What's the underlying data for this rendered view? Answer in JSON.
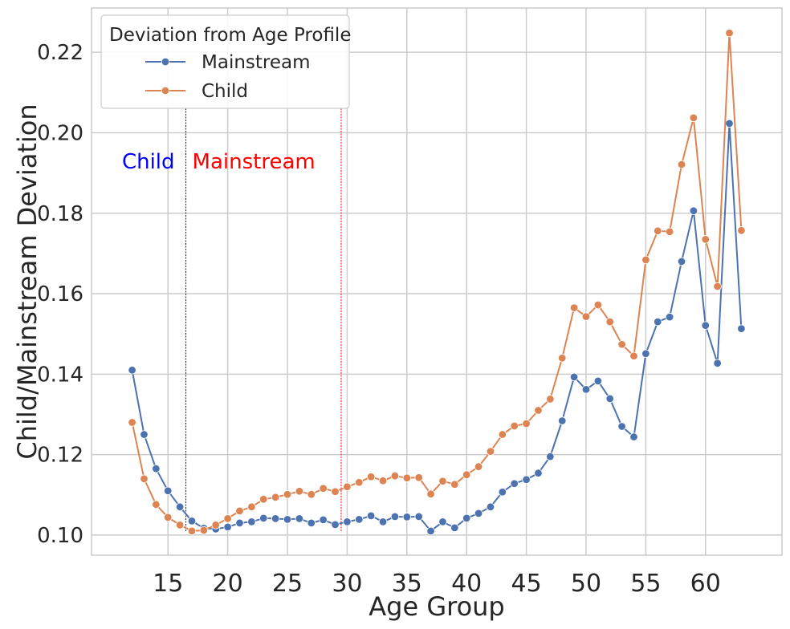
{
  "chart_data": {
    "type": "line",
    "xlabel": "Age Group",
    "ylabel": "Child/Mainstream Deviation",
    "xlim": [
      8.6,
      66.4
    ],
    "ylim": [
      0.095,
      0.231
    ],
    "xticks": [
      15,
      20,
      25,
      30,
      35,
      40,
      45,
      50,
      55,
      60
    ],
    "yticks": [
      0.1,
      0.12,
      0.14,
      0.16,
      0.18,
      0.2,
      0.22
    ],
    "grid": true,
    "legend": {
      "title": "Deviation from Age Profile",
      "placement": "upper-left"
    },
    "x": [
      12,
      13,
      14,
      15,
      16,
      17,
      18,
      19,
      20,
      21,
      22,
      23,
      24,
      25,
      26,
      27,
      28,
      29,
      30,
      31,
      32,
      33,
      34,
      35,
      36,
      37,
      38,
      39,
      40,
      41,
      42,
      43,
      44,
      45,
      46,
      47,
      48,
      49,
      50,
      51,
      52,
      53,
      54,
      55,
      56,
      57,
      58,
      59,
      60,
      61,
      62,
      63
    ],
    "series": [
      {
        "name": "Mainstream",
        "color": "#4c72b0",
        "values": [
          0.141,
          0.125,
          0.1165,
          0.111,
          0.107,
          0.1035,
          0.1017,
          0.1015,
          0.102,
          0.103,
          0.1033,
          0.1042,
          0.1041,
          0.1039,
          0.1041,
          0.103,
          0.1038,
          0.1026,
          0.1033,
          0.1039,
          0.1048,
          0.1033,
          0.1046,
          0.1045,
          0.1046,
          0.101,
          0.1033,
          0.1018,
          0.1042,
          0.1054,
          0.107,
          0.1107,
          0.1128,
          0.1138,
          0.1154,
          0.1195,
          0.1284,
          0.1393,
          0.1362,
          0.1383,
          0.1339,
          0.127,
          0.1244,
          0.1451,
          0.153,
          0.1542,
          0.168,
          0.1806,
          0.1521,
          0.1427,
          0.2023,
          0.1513
        ]
      },
      {
        "name": "Child",
        "color": "#dd8452",
        "values": [
          0.128,
          0.114,
          0.1076,
          0.1044,
          0.1025,
          0.101,
          0.1012,
          0.1025,
          0.1041,
          0.106,
          0.107,
          0.1089,
          0.1094,
          0.1101,
          0.1109,
          0.1101,
          0.1116,
          0.1108,
          0.112,
          0.1131,
          0.1145,
          0.1135,
          0.1147,
          0.1142,
          0.1143,
          0.1102,
          0.1134,
          0.1126,
          0.115,
          0.117,
          0.1208,
          0.125,
          0.1271,
          0.1277,
          0.131,
          0.1338,
          0.144,
          0.1565,
          0.1543,
          0.1572,
          0.153,
          0.1474,
          0.1445,
          0.1684,
          0.1756,
          0.1754,
          0.1921,
          0.2037,
          0.1735,
          0.1618,
          0.2248,
          0.1757
        ]
      }
    ],
    "vlines": [
      {
        "x": 16.5,
        "color": "#0000ff",
        "label": "Child",
        "style": "dashed"
      },
      {
        "x": 29.5,
        "color": "#ff0000",
        "label": "Mainstream",
        "style": "dashed"
      }
    ]
  }
}
